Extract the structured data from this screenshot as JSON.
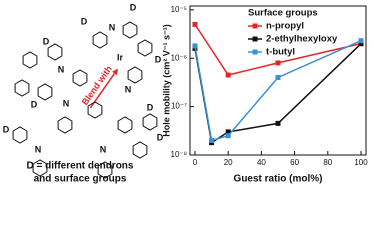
{
  "scheme": {
    "blend_label": "Blend with",
    "caption": [
      "D = different dendrons",
      "and surface groups"
    ],
    "atom_labels": [
      "Ir",
      "N",
      "N",
      "N",
      "N",
      "N",
      "N",
      "D",
      "D",
      "D",
      "D",
      "D",
      "D",
      "D",
      "D"
    ]
  },
  "chart_data": {
    "type": "line",
    "xlabel": "Guest ratio (mol%)",
    "ylabel": "Hole mobility (cm² V⁻¹ s⁻¹)",
    "legend_title": "Surface groups",
    "legend": "upper-right",
    "log_y": true,
    "xlim": [
      -3,
      103
    ],
    "xticks": [
      0,
      20,
      40,
      60,
      80,
      100
    ],
    "ylim": [
      1e-08,
      1.2e-05
    ],
    "yticks": [
      {
        "value": 1e-08,
        "label": "10⁻⁸"
      },
      {
        "value": 1e-07,
        "label": "10⁻⁷"
      },
      {
        "value": 1e-06,
        "label": "10⁻⁶"
      },
      {
        "value": 1e-05,
        "label": "10⁻⁵"
      }
    ],
    "series": [
      {
        "name": "n-propyl",
        "color": "#e8242a",
        "x": [
          0,
          20,
          50,
          100
        ],
        "values": [
          5e-06,
          4.5e-07,
          8e-07,
          2e-06
        ]
      },
      {
        "name": "2-ethylhexyloxy",
        "color": "#111111",
        "x": [
          0,
          10,
          20,
          50,
          100
        ],
        "values": [
          1.6e-06,
          1.8e-08,
          3e-08,
          4.5e-08,
          2e-06
        ]
      },
      {
        "name": "t-butyl",
        "color": "#3a8fd8",
        "x": [
          0,
          10,
          20,
          50,
          100
        ],
        "values": [
          1.8e-06,
          2e-08,
          2.5e-08,
          4e-07,
          2.3e-06
        ]
      }
    ]
  }
}
